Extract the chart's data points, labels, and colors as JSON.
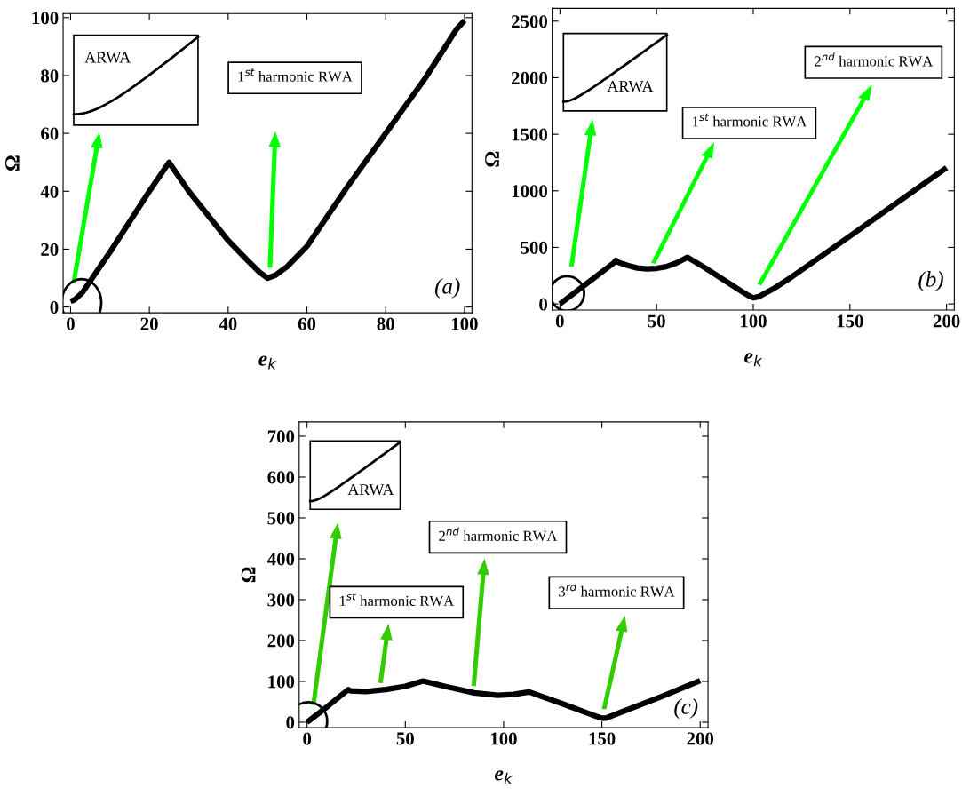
{
  "chart_data": [
    {
      "type": "line",
      "xlabel": "e$_{k}$",
      "ylabel": "Ω",
      "xlim": [
        -1.9,
        101.9
      ],
      "ylim": [
        -2,
        101.4
      ],
      "xticks": [
        0,
        20,
        40,
        60,
        80,
        100
      ],
      "yticks": [
        0,
        20,
        40,
        60,
        80,
        100
      ],
      "grid": false,
      "annotations": [
        "ARWA",
        "1$^{st}$ harmonic RWA",
        "(a)"
      ],
      "series": [
        {
          "color": "#000000",
          "x": [
            0,
            1,
            3,
            10,
            20,
            25,
            30,
            40,
            45,
            48,
            50,
            52,
            55,
            60,
            70,
            80,
            90,
            98,
            100
          ],
          "values": [
            2,
            2.5,
            5,
            19,
            40,
            50,
            40,
            23,
            16,
            12,
            10,
            11,
            14,
            21,
            41,
            60,
            79,
            96,
            99
          ]
        }
      ]
    },
    {
      "type": "line",
      "xlabel": "e$_{k}$",
      "ylabel": "Ω",
      "xlim": [
        -4,
        204
      ],
      "ylim": [
        -54,
        2613
      ],
      "xticks": [
        0,
        50,
        100,
        150,
        200
      ],
      "yticks": [
        0,
        500,
        1000,
        1500,
        2000,
        2500
      ],
      "grid": false,
      "annotations": [
        "ARWA",
        "1$^{st}$ harmonic RWA",
        "2$^{nd}$ harmonic RWA",
        "(b)"
      ],
      "series": [
        {
          "color": "#000000",
          "x": [
            0,
            10,
            20,
            28,
            29,
            30,
            35,
            40,
            45,
            50,
            55,
            60,
            66,
            75,
            85,
            95,
            98,
            100,
            103,
            110,
            120,
            150,
            200
          ],
          "values": [
            0,
            130,
            260,
            365,
            385,
            369,
            340,
            318,
            310,
            315,
            330,
            360,
            412,
            320,
            210,
            100,
            70,
            54,
            65,
            130,
            240,
            600,
            1205
          ]
        }
      ]
    },
    {
      "type": "line",
      "xlabel": "e$_{k}$",
      "ylabel": "Ω",
      "xlim": [
        -4,
        204
      ],
      "ylim": [
        -13,
        735
      ],
      "xticks": [
        0,
        50,
        100,
        150,
        200
      ],
      "yticks": [
        0,
        100,
        200,
        300,
        400,
        500,
        600,
        700
      ],
      "grid": false,
      "annotations": [
        "ARWA",
        "1$^{st}$ harmonic RWA",
        "2$^{nd}$ harmonic RWA",
        "3$^{rd}$ harmonic RWA",
        "(c)"
      ],
      "series": [
        {
          "color": "#000000",
          "x": [
            0,
            10,
            21,
            22,
            30,
            40,
            50,
            59,
            70,
            85,
            97,
            105,
            113,
            130,
            145,
            150,
            152,
            160,
            180,
            200
          ],
          "values": [
            0,
            37,
            80,
            77,
            75,
            80,
            88,
            101,
            88,
            72,
            66,
            68,
            74,
            45,
            18,
            10,
            10,
            25,
            62,
            102
          ]
        }
      ]
    }
  ]
}
